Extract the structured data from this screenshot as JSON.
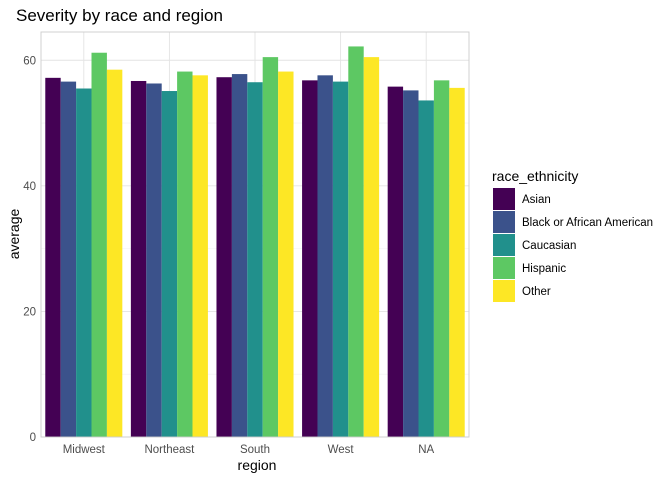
{
  "chart_data": {
    "type": "bar",
    "title": "Severity by race and region",
    "xlabel": "region",
    "ylabel": "average",
    "categories": [
      "Midwest",
      "Northeast",
      "South",
      "West",
      "NA"
    ],
    "ylim": [
      0,
      64.5
    ],
    "yticks": [
      0,
      20,
      40,
      60
    ],
    "grid": true,
    "legend": {
      "title": "race_ethnicity",
      "position": "right"
    },
    "series": [
      {
        "name": "Asian",
        "color": "#440154",
        "values": [
          57.2,
          56.7,
          57.3,
          56.8,
          55.8
        ]
      },
      {
        "name": "Black or African American",
        "color": "#3B528B",
        "values": [
          56.6,
          56.3,
          57.8,
          57.6,
          55.2
        ]
      },
      {
        "name": "Caucasian",
        "color": "#21908C",
        "values": [
          55.5,
          55.1,
          56.5,
          56.6,
          53.6
        ]
      },
      {
        "name": "Hispanic",
        "color": "#5DC863",
        "values": [
          61.2,
          58.2,
          60.5,
          62.2,
          56.8
        ]
      },
      {
        "name": "Other",
        "color": "#FDE725",
        "values": [
          58.5,
          57.6,
          58.2,
          60.5,
          55.6
        ]
      }
    ]
  }
}
